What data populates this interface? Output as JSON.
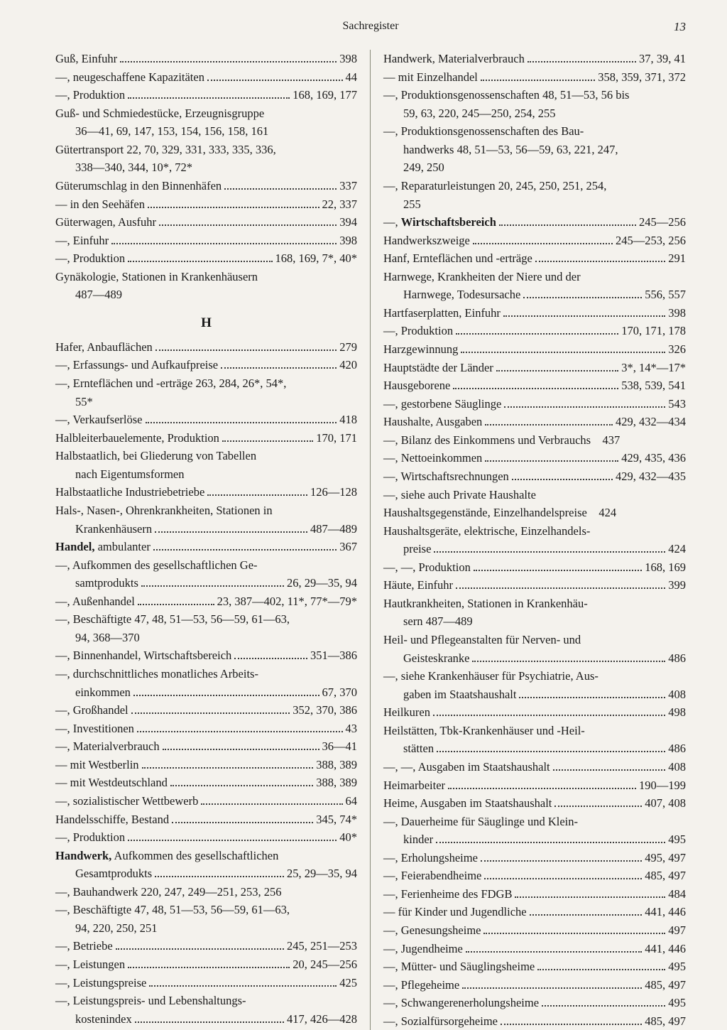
{
  "header": {
    "title": "Sachregister",
    "pageNumber": "13"
  },
  "sectionLetter": "H",
  "left": [
    {
      "type": "fill",
      "term": "Guß, Einfuhr",
      "pages": "398"
    },
    {
      "type": "fill",
      "term": "—, neugeschaffene Kapazitäten",
      "pages": "44"
    },
    {
      "type": "fill",
      "term": "—, Produktion",
      "pages": "168, 169, 177"
    },
    {
      "type": "nofill",
      "text": "Guß- und Schmiedestücke, Erzeugnisgruppe"
    },
    {
      "type": "nofill",
      "text": "36—41, 69, 147, 153, 154, 156, 158, 161",
      "continued": true
    },
    {
      "type": "nofill",
      "text": "Gütertransport 22, 70, 329, 331, 333, 335, 336,"
    },
    {
      "type": "nofill",
      "text": "338—340, 344, 10*, 72*",
      "continued": true
    },
    {
      "type": "fill",
      "term": "Güterumschlag in den Binnenhäfen",
      "pages": "337"
    },
    {
      "type": "fill",
      "term": "— in den Seehäfen",
      "pages": "22, 337"
    },
    {
      "type": "fill",
      "term": "Güterwagen, Ausfuhr",
      "pages": "394"
    },
    {
      "type": "fill",
      "term": "—, Einfuhr",
      "pages": "398"
    },
    {
      "type": "fill",
      "term": "—, Produktion",
      "pages": "168, 169, 7*, 40*"
    },
    {
      "type": "nofill",
      "text": "Gynäkologie, Stationen in Krankenhäusern"
    },
    {
      "type": "nofill",
      "text": "487—489",
      "continued": true
    },
    {
      "type": "section"
    },
    {
      "type": "fill",
      "term": "Hafer, Anbauflächen",
      "pages": "279"
    },
    {
      "type": "fill",
      "term": "—, Erfassungs- und Aufkaufpreise",
      "pages": "420"
    },
    {
      "type": "nofill",
      "text": "—, Ernteflächen und -erträge 263, 284, 26*, 54*,"
    },
    {
      "type": "nofill",
      "text": "55*",
      "continued": true
    },
    {
      "type": "fill",
      "term": "—, Verkaufserlöse",
      "pages": "418"
    },
    {
      "type": "fill",
      "term": "Halbleiterbauelemente, Produktion",
      "pages": "170, 171"
    },
    {
      "type": "nofill",
      "text": "Halbstaatlich, bei Gliederung von Tabellen"
    },
    {
      "type": "nofill",
      "text": "nach Eigentumsformen",
      "continued": true
    },
    {
      "type": "fill",
      "term": "Halbstaatliche Industriebetriebe",
      "pages": "126—128"
    },
    {
      "type": "nofill",
      "text": "Hals-, Nasen-, Ohrenkrankheiten, Stationen in"
    },
    {
      "type": "fill",
      "term": "Krankenhäusern",
      "pages": "487—489",
      "continued": true
    },
    {
      "type": "fill",
      "term": "<span class=\"bold\">Handel,</span> ambulanter",
      "pages": "367",
      "html": true
    },
    {
      "type": "nofill",
      "text": "—, Aufkommen des gesellschaftlichen Ge-"
    },
    {
      "type": "fill",
      "term": "samtprodukts",
      "pages": "26, 29—35, 94",
      "continued": true
    },
    {
      "type": "fill",
      "term": "—, Außenhandel",
      "pages": "23, 387—402, 11*, 77*—79*"
    },
    {
      "type": "nofill",
      "text": "—, Beschäftigte 47, 48, 51—53, 56—59, 61—63,"
    },
    {
      "type": "nofill",
      "text": "94, 368—370",
      "continued": true
    },
    {
      "type": "fill",
      "term": "—, Binnenhandel, Wirtschaftsbereich",
      "pages": "351—386"
    },
    {
      "type": "nofill",
      "text": "—, durchschnittliches monatliches Arbeits-"
    },
    {
      "type": "fill",
      "term": "einkommen",
      "pages": "67, 370",
      "continued": true
    },
    {
      "type": "fill",
      "term": "—, Großhandel",
      "pages": "352, 370, 386"
    },
    {
      "type": "fill",
      "term": "—, Investitionen",
      "pages": "43"
    },
    {
      "type": "fill",
      "term": "—, Materialverbrauch",
      "pages": "36—41"
    },
    {
      "type": "fill",
      "term": "— mit Westberlin",
      "pages": "388, 389"
    },
    {
      "type": "fill",
      "term": "— mit Westdeutschland",
      "pages": "388, 389"
    },
    {
      "type": "fill",
      "term": "—, sozialistischer Wettbewerb",
      "pages": "64"
    },
    {
      "type": "fill",
      "term": "Handelsschiffe, Bestand",
      "pages": "345, 74*"
    },
    {
      "type": "fill",
      "term": "—, Produktion",
      "pages": "40*"
    },
    {
      "type": "nofill",
      "text": "<span class=\"bold\">Handwerk,</span> Aufkommen des gesellschaftlichen",
      "html": true
    },
    {
      "type": "fill",
      "term": "Gesamtprodukts",
      "pages": "25, 29—35, 94",
      "continued": true
    },
    {
      "type": "nofill",
      "text": "—, Bauhandwerk 220, 247, 249—251, 253, 256"
    },
    {
      "type": "nofill",
      "text": "—, Beschäftigte 47, 48, 51—53, 56—59, 61—63,"
    },
    {
      "type": "nofill",
      "text": "94, 220, 250, 251",
      "continued": true
    },
    {
      "type": "fill",
      "term": "—, Betriebe",
      "pages": "245, 251—253"
    },
    {
      "type": "fill",
      "term": "—, Leistungen",
      "pages": "20, 245—256"
    },
    {
      "type": "fill",
      "term": "—, Leistungspreise",
      "pages": "425"
    },
    {
      "type": "nofill",
      "text": "—, Leistungspreis- und Lebenshaltungs-"
    },
    {
      "type": "fill",
      "term": "kostenindex",
      "pages": "417, 426—428",
      "continued": true
    }
  ],
  "right": [
    {
      "type": "fill",
      "term": "Handwerk, Materialverbrauch",
      "pages": "37, 39, 41"
    },
    {
      "type": "fill",
      "term": "— mit Einzelhandel",
      "pages": "358, 359, 371, 372"
    },
    {
      "type": "nofill",
      "text": "—, Produktionsgenossenschaften 48, 51—53, 56 bis"
    },
    {
      "type": "nofill",
      "text": "59, 63, 220, 245—250, 254, 255",
      "continued": true
    },
    {
      "type": "nofill",
      "text": "—, Produktionsgenossenschaften des Bau-"
    },
    {
      "type": "nofill",
      "text": "handwerks 48, 51—53, 56—59, 63, 221, 247,",
      "continued": true
    },
    {
      "type": "nofill",
      "text": "249, 250",
      "continued": true
    },
    {
      "type": "nofill",
      "text": "—, Reparaturleistungen 20, 245, 250, 251, 254,"
    },
    {
      "type": "nofill",
      "text": "255",
      "continued": true
    },
    {
      "type": "fill",
      "term": "—, <span class=\"bold\">Wirtschaftsbereich</span>",
      "pages": "245—256",
      "html": true
    },
    {
      "type": "fill",
      "term": "Handwerkszweige",
      "pages": "245—253, 256"
    },
    {
      "type": "fill",
      "term": "Hanf, Ernteflächen und -erträge",
      "pages": "291"
    },
    {
      "type": "nofill",
      "text": "Harnwege, Krankheiten der Niere und der"
    },
    {
      "type": "fill",
      "term": "Harnwege, Todesursache",
      "pages": "556, 557",
      "continued": true
    },
    {
      "type": "fill",
      "term": "Hartfaserplatten, Einfuhr",
      "pages": "398"
    },
    {
      "type": "fill",
      "term": "—, Produktion",
      "pages": "170, 171, 178"
    },
    {
      "type": "fill",
      "term": "Harzgewinnung",
      "pages": "326"
    },
    {
      "type": "fill",
      "term": "Hauptstädte der Länder",
      "pages": "3*, 14*—17*"
    },
    {
      "type": "fill",
      "term": "Hausgeborene",
      "pages": "538, 539, 541"
    },
    {
      "type": "fill",
      "term": "—, gestorbene Säuglinge",
      "pages": "543"
    },
    {
      "type": "fill",
      "term": "Haushalte, Ausgaben",
      "pages": "429, 432—434"
    },
    {
      "type": "nofill",
      "text": "—, Bilanz des Einkommens und Verbrauchs 437"
    },
    {
      "type": "fill",
      "term": "—, Nettoeinkommen",
      "pages": "429, 435, 436"
    },
    {
      "type": "fill",
      "term": "—, Wirtschaftsrechnungen",
      "pages": "429, 432—435"
    },
    {
      "type": "nofill",
      "text": "—, siehe auch Private Haushalte"
    },
    {
      "type": "nofill",
      "text": "Haushaltsgegenstände, Einzelhandelspreise 424"
    },
    {
      "type": "nofill",
      "text": "Haushaltsgeräte, elektrische, Einzelhandels-"
    },
    {
      "type": "fill",
      "term": "preise",
      "pages": "424",
      "continued": true
    },
    {
      "type": "fill",
      "term": "—, —, Produktion",
      "pages": "168, 169"
    },
    {
      "type": "fill",
      "term": "Häute, Einfuhr",
      "pages": "399"
    },
    {
      "type": "nofill",
      "text": "Hautkrankheiten, Stationen in Krankenhäu-"
    },
    {
      "type": "nofill",
      "text": "sern 487—489",
      "continued": true
    },
    {
      "type": "nofill",
      "text": "Heil- und Pflegeanstalten für Nerven- und"
    },
    {
      "type": "fill",
      "term": "Geisteskranke",
      "pages": "486",
      "continued": true
    },
    {
      "type": "nofill",
      "text": "—, siehe Krankenhäuser für Psychiatrie, Aus-"
    },
    {
      "type": "fill",
      "term": "gaben im Staatshaushalt",
      "pages": "408",
      "continued": true
    },
    {
      "type": "fill",
      "term": "Heilkuren",
      "pages": "498"
    },
    {
      "type": "nofill",
      "text": "Heilstätten, Tbk-Krankenhäuser und -Heil-"
    },
    {
      "type": "fill",
      "term": "stätten",
      "pages": "486",
      "continued": true
    },
    {
      "type": "fill",
      "term": "—, —, Ausgaben im Staatshaushalt",
      "pages": "408"
    },
    {
      "type": "fill",
      "term": "Heimarbeiter",
      "pages": "190—199"
    },
    {
      "type": "fill",
      "term": "Heime, Ausgaben im Staatshaushalt",
      "pages": "407, 408"
    },
    {
      "type": "nofill",
      "text": "—, Dauerheime für Säuglinge und Klein-"
    },
    {
      "type": "fill",
      "term": "kinder",
      "pages": "495",
      "continued": true
    },
    {
      "type": "fill",
      "term": "—, Erholungsheime",
      "pages": "495, 497"
    },
    {
      "type": "fill",
      "term": "—, Feierabendheime",
      "pages": "485, 497"
    },
    {
      "type": "fill",
      "term": "—, Ferienheime des FDGB",
      "pages": "484"
    },
    {
      "type": "fill",
      "term": "— für Kinder und Jugendliche",
      "pages": "441, 446"
    },
    {
      "type": "fill",
      "term": "—, Genesungsheime",
      "pages": "497"
    },
    {
      "type": "fill",
      "term": "—, Jugendheime",
      "pages": "441, 446"
    },
    {
      "type": "fill",
      "term": "—, Mütter- und Säuglingsheime",
      "pages": "495"
    },
    {
      "type": "fill",
      "term": "—, Pflegeheime",
      "pages": "485, 497"
    },
    {
      "type": "fill",
      "term": "—, Schwangerenerholungsheime",
      "pages": "495"
    },
    {
      "type": "fill",
      "term": "—, Sozialfürsorgeheime",
      "pages": "485, 497"
    }
  ]
}
